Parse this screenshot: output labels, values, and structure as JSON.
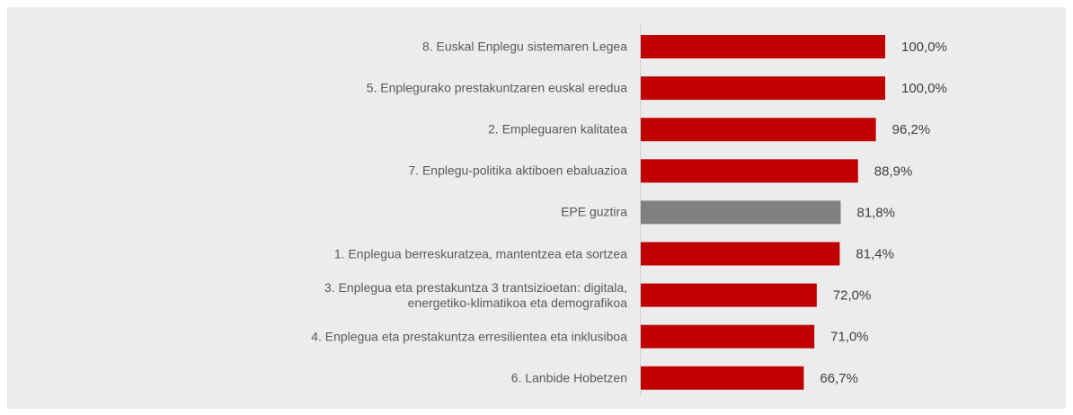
{
  "chart_data": {
    "type": "barh",
    "categories": [
      "8. Euskal Enplegu sistemaren Legea",
      "5. Enplegurako prestakuntzaren euskal eredua",
      "2. Empleguaren kalitatea",
      "7. Enplegu-politika aktiboen ebaluazioa",
      "EPE guztira",
      "1. Enplegua berreskuratzea, mantentzea eta sortzea",
      "3. Enplegua eta prestakuntza 3 trantsizioetan: digitala,\nenergetiko-klimatikoa eta demografikoa",
      "4. Enplegua eta prestakuntza erresilientea eta inklusiboa",
      "6. Lanbide Hobetzen"
    ],
    "values": [
      100.0,
      100.0,
      96.2,
      88.9,
      81.8,
      81.4,
      72.0,
      71.0,
      66.7
    ],
    "value_labels": [
      "100,0%",
      "100,0%",
      "96,2%",
      "88,9%",
      "81,8%",
      "81,4%",
      "72,0%",
      "71,0%",
      "66,7%"
    ],
    "colors": [
      "#c00000",
      "#c00000",
      "#c00000",
      "#c00000",
      "#808080",
      "#c00000",
      "#c00000",
      "#c00000",
      "#c00000"
    ]
  }
}
